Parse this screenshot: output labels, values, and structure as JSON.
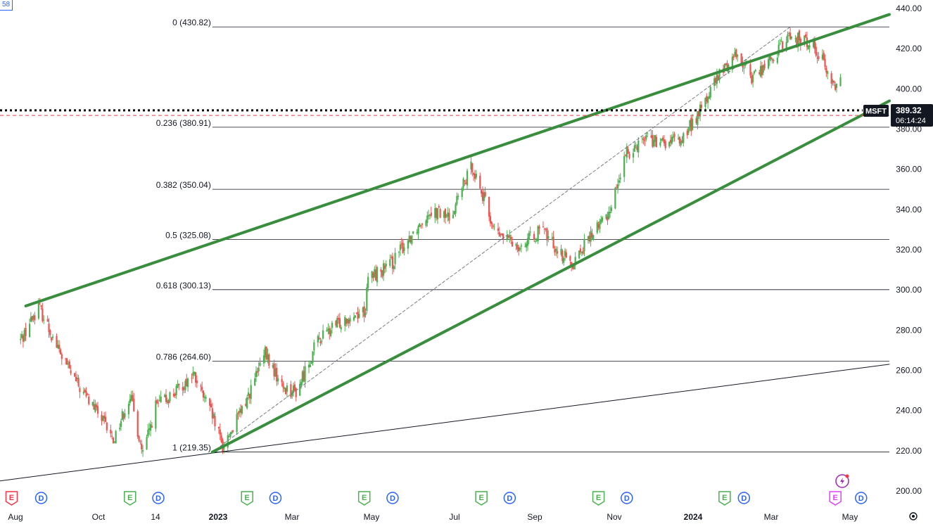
{
  "corner_tag": "58",
  "chart_data": {
    "type": "candlestick",
    "symbol": "MSFT",
    "last_price": "389.32",
    "countdown": "06:14:24",
    "price_axis": {
      "ylim": [
        195,
        442
      ],
      "ticks": [
        "440.00",
        "420.00",
        "400.00",
        "380.00",
        "360.00",
        "340.00",
        "320.00",
        "300.00",
        "280.00",
        "260.00",
        "240.00",
        "220.00",
        "200.00"
      ]
    },
    "time_axis": {
      "labels": [
        "Aug",
        "Oct",
        "14",
        "2023",
        "Mar",
        "May",
        "Jul",
        "Sep",
        "Nov",
        "2024",
        "Mar",
        "May"
      ],
      "bold": [
        "2023",
        "2024"
      ]
    },
    "fib_levels": [
      {
        "label": "0 (430.82)",
        "value": 430.82
      },
      {
        "label": "0.236 (380.91)",
        "value": 380.91
      },
      {
        "label": "0.382 (350.04)",
        "value": 350.04
      },
      {
        "label": "0.5 (325.08)",
        "value": 325.08
      },
      {
        "label": "0.618 (300.13)",
        "value": 300.13
      },
      {
        "label": "0.786 (264.60)",
        "value": 264.6
      },
      {
        "label": "1 (219.35)",
        "value": 219.35
      }
    ],
    "anchors": [
      [
        "2022-08-01",
        275
      ],
      [
        "2022-08-15",
        292
      ],
      [
        "2022-09-01",
        268
      ],
      [
        "2022-09-15",
        252
      ],
      [
        "2022-10-01",
        238
      ],
      [
        "2022-10-12",
        225
      ],
      [
        "2022-10-25",
        248
      ],
      [
        "2022-11-04",
        218
      ],
      [
        "2022-11-14",
        242
      ],
      [
        "2022-12-01",
        250
      ],
      [
        "2022-12-13",
        258
      ],
      [
        "2022-12-28",
        237
      ],
      [
        "2023-01-05",
        222
      ],
      [
        "2023-01-20",
        240
      ],
      [
        "2023-02-07",
        268
      ],
      [
        "2023-02-20",
        252
      ],
      [
        "2023-03-03",
        249
      ],
      [
        "2023-03-20",
        275
      ],
      [
        "2023-04-10",
        286
      ],
      [
        "2023-04-26",
        290
      ],
      [
        "2023-04-28",
        306
      ],
      [
        "2023-05-15",
        312
      ],
      [
        "2023-05-31",
        327
      ],
      [
        "2023-06-15",
        340
      ],
      [
        "2023-06-30",
        336
      ],
      [
        "2023-07-18",
        362
      ],
      [
        "2023-08-05",
        328
      ],
      [
        "2023-08-25",
        322
      ],
      [
        "2023-09-10",
        330
      ],
      [
        "2023-09-25",
        318
      ],
      [
        "2023-10-03",
        313
      ],
      [
        "2023-10-25",
        333
      ],
      [
        "2023-10-31",
        337
      ],
      [
        "2023-11-15",
        368
      ],
      [
        "2023-11-30",
        377
      ],
      [
        "2023-12-10",
        372
      ],
      [
        "2023-12-28",
        375
      ],
      [
        "2024-01-10",
        388
      ],
      [
        "2024-01-24",
        405
      ],
      [
        "2024-02-08",
        418
      ],
      [
        "2024-02-20",
        406
      ],
      [
        "2024-03-04",
        413
      ],
      [
        "2024-03-20",
        426
      ],
      [
        "2024-04-08",
        422
      ],
      [
        "2024-04-15",
        414
      ],
      [
        "2024-04-25",
        400
      ],
      [
        "2024-04-29",
        405
      ]
    ],
    "channel_upper": [
      [
        "2022-08-05",
        292
      ],
      [
        "2024-06-06",
        437
      ]
    ],
    "channel_lower": [
      [
        "2022-12-28",
        219.35
      ],
      [
        "2024-06-06",
        394
      ]
    ],
    "long_trend": [
      [
        "2022-07-16",
        205
      ],
      [
        "2024-06-06",
        263
      ]
    ],
    "fib_diagonal": [
      [
        "2022-12-28",
        219.35
      ],
      [
        "2024-03-21",
        430.82
      ]
    ],
    "horizontal_dotted": 389.32,
    "horizontal_dashed": 386.8,
    "events": [
      {
        "date": "2022-07-25",
        "type": "E",
        "style": "red"
      },
      {
        "date": "2022-08-17",
        "type": "D",
        "style": "blue"
      },
      {
        "date": "2022-10-25",
        "type": "E",
        "style": "green"
      },
      {
        "date": "2022-11-16",
        "type": "D",
        "style": "blue"
      },
      {
        "date": "2023-01-24",
        "type": "E",
        "style": "green"
      },
      {
        "date": "2023-02-15",
        "type": "D",
        "style": "blue"
      },
      {
        "date": "2023-04-25",
        "type": "E",
        "style": "green"
      },
      {
        "date": "2023-05-17",
        "type": "D",
        "style": "blue"
      },
      {
        "date": "2023-07-25",
        "type": "E",
        "style": "green"
      },
      {
        "date": "2023-08-16",
        "type": "D",
        "style": "blue"
      },
      {
        "date": "2023-10-24",
        "type": "E",
        "style": "green"
      },
      {
        "date": "2023-11-15",
        "type": "D",
        "style": "blue"
      },
      {
        "date": "2024-01-30",
        "type": "E",
        "style": "green"
      },
      {
        "date": "2024-02-14",
        "type": "D",
        "style": "blue"
      },
      {
        "date": "2024-04-25",
        "type": "E",
        "style": "purple"
      },
      {
        "date": "2024-05-15",
        "type": "D",
        "style": "blue"
      }
    ],
    "colors": {
      "up": "#26a69a",
      "upLine": "#4caf50",
      "down": "#ef5350",
      "channel": "#388e3c",
      "fib": "#131722",
      "axis": "#131722",
      "blue": "#2962ff",
      "red": "#f23645",
      "purple": "#e040fb"
    }
  }
}
